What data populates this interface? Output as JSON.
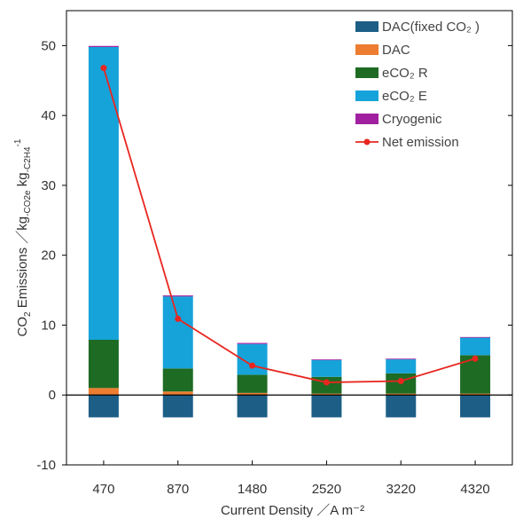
{
  "chart_data": {
    "type": "bar",
    "stacked": true,
    "categories": [
      "470",
      "870",
      "1480",
      "2520",
      "3220",
      "4320"
    ],
    "series": [
      {
        "name": "DAC(fixed CO₂ )",
        "color": "#1c5e86",
        "values": [
          -3.2,
          -3.2,
          -3.2,
          -3.2,
          -3.2,
          -3.2
        ]
      },
      {
        "name": "DAC",
        "color": "#ed7d31",
        "values": [
          1.0,
          0.5,
          0.3,
          0.2,
          0.2,
          0.2
        ]
      },
      {
        "name": "eCO₂ R",
        "color": "#1e6b24",
        "values": [
          6.9,
          3.3,
          2.6,
          2.4,
          2.9,
          5.5
        ]
      },
      {
        "name": "eCO₂ E",
        "color": "#16a3da",
        "values": [
          41.9,
          10.3,
          4.4,
          2.4,
          2.0,
          2.5
        ]
      },
      {
        "name": "Cryogenic",
        "color": "#a020a0",
        "values": [
          0.15,
          0.15,
          0.15,
          0.1,
          0.1,
          0.1
        ]
      },
      {
        "name": "Net emission",
        "type": "line",
        "color": "#e8261f",
        "values": [
          46.8,
          10.9,
          4.2,
          1.8,
          2.0,
          5.2
        ]
      }
    ],
    "xlabel": "Current Density ／A m⁻²",
    "ylabel": {
      "main": "CO",
      "sub1": "2",
      "mid": " Emissions ／kg",
      "sub2": "-CO2e",
      "mid2": " kg",
      "sub3": "-C2H4",
      "sup": "-1"
    },
    "ylim": [
      -10,
      55
    ],
    "yticks": [
      -10,
      0,
      10,
      20,
      30,
      40,
      50
    ],
    "legend_position": "top-right"
  }
}
